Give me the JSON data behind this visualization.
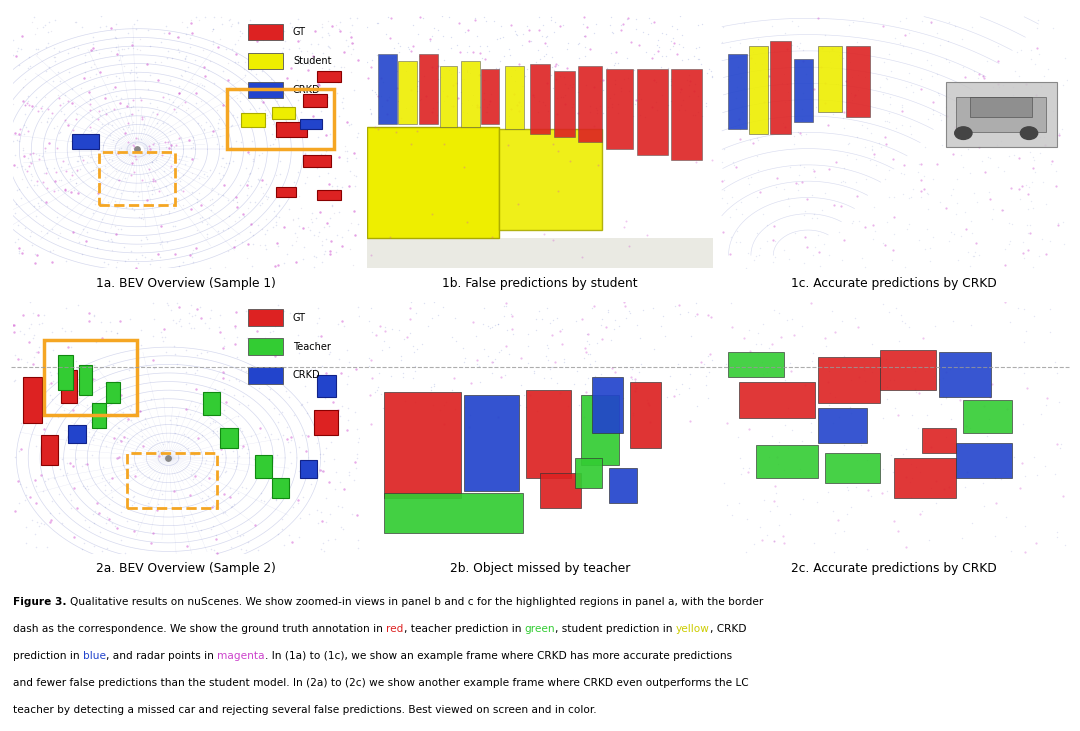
{
  "figure_bg": "#ffffff",
  "titles": [
    "1a. BEV Overview (Sample 1)",
    "1b. False predictions by student",
    "1c. Accurate predictions by CRKD",
    "2a. BEV Overview (Sample 2)",
    "2b. Object missed by teacher",
    "2c. Accurate predictions by CRKD"
  ],
  "border_colors_outer": [
    "#4472c4",
    "#f5a623",
    "#f5a623",
    "#4472c4",
    "#f5a623",
    "#f5a623"
  ],
  "border_styles_outer": [
    "solid",
    "solid",
    "dashed",
    "solid",
    "solid",
    "dashed"
  ],
  "border_widths_outer": [
    2.0,
    2.5,
    2.0,
    2.0,
    2.5,
    2.0
  ],
  "legend1_items": [
    {
      "label": "GT",
      "color": "#dd2222"
    },
    {
      "label": "Student",
      "color": "#eeee00"
    },
    {
      "label": "CRKD",
      "color": "#2244cc"
    }
  ],
  "legend2_items": [
    {
      "label": "GT",
      "color": "#dd2222"
    },
    {
      "label": "Teacher",
      "color": "#33cc33"
    },
    {
      "label": "CRKD",
      "color": "#2244cc"
    }
  ],
  "separator_color": "#999999",
  "caption_lines": [
    [
      [
        "Figure 3. ",
        "black",
        true
      ],
      [
        "Qualitative results on nuScenes. We show zoomed-in views in panel b and c for the highlighted regions in panel a, with the border",
        "black",
        false
      ]
    ],
    [
      [
        "dash as the correspondence. We show the ground truth annotation in ",
        "black",
        false
      ],
      [
        "red",
        "#dd2222",
        false
      ],
      [
        ", teacher prediction in ",
        "black",
        false
      ],
      [
        "green",
        "#33cc33",
        false
      ],
      [
        ", student prediction in ",
        "black",
        false
      ],
      [
        "yellow",
        "#cccc00",
        false
      ],
      [
        ", CRKD",
        "black",
        false
      ]
    ],
    [
      [
        "prediction in ",
        "black",
        false
      ],
      [
        "blue",
        "#2244cc",
        false
      ],
      [
        ", and radar points in ",
        "black",
        false
      ],
      [
        "magenta",
        "#cc44cc",
        false
      ],
      [
        ". In (1a) to (1c), we show an example frame where CRKD has more accurate predictions",
        "black",
        false
      ]
    ],
    [
      [
        "and fewer false predictions than the student model. In (2a) to (2c) we show another example frame where CRKD even outperforms the LC",
        "black",
        false
      ]
    ],
    [
      [
        "teacher by detecting a missed car and rejecting several false predictions. Best viewed on screen and in color.",
        "black",
        false
      ]
    ]
  ]
}
